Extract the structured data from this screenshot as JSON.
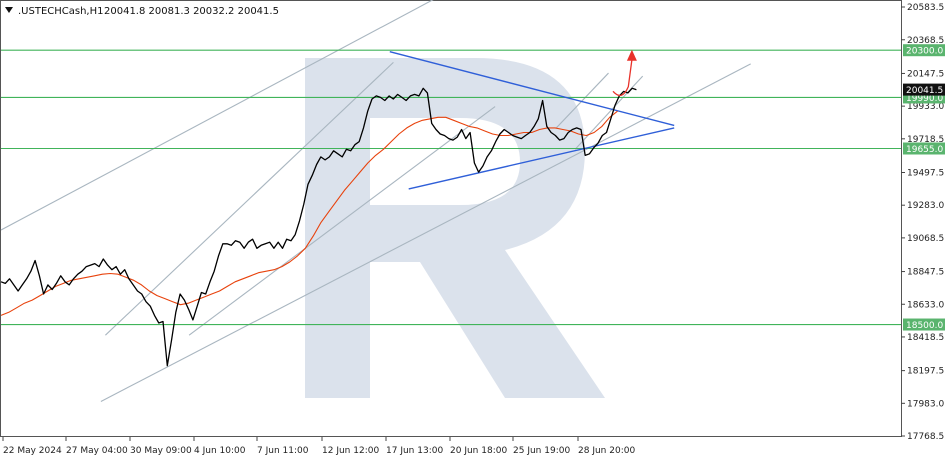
{
  "header": {
    "symbol": ".USTECHCash,H1",
    "ohlc": "20041.8 20081.3 20032.2 20041.5",
    "menu_icon": "triangle-down-icon"
  },
  "watermark_icon": "broker-logo-letter-r",
  "colors": {
    "price_line": "#000000",
    "moving_average": "#e8420c",
    "level_lines": "#41b45a",
    "level_label_bg": "#5ab46e",
    "triangle_lines": "#2f5fd8",
    "channel_lines": "#a9b6c0",
    "forecast_arrow": "#e8322a",
    "watermark": "#dbe2ec"
  },
  "chart_data": {
    "type": "line",
    "title": "",
    "xlabel": "",
    "ylabel": "",
    "ylim": [
      17768.5,
      20583.5
    ],
    "grid": false,
    "y_ticks": [
      "20583.5",
      "20368.5",
      "20147.5",
      "19933.0",
      "19718.5",
      "19497.5",
      "19283.0",
      "19068.5",
      "18847.5",
      "18633.0",
      "18418.5",
      "18197.5",
      "17983.0",
      "17768.5"
    ],
    "x_ticks": [
      "22 May 2024",
      "27 May 04:00",
      "30 May 09:00",
      "4 Jun 10:00",
      "7 Jun 11:00",
      "12 Jun 12:00",
      "17 Jun 13:00",
      "20 Jun 18:00",
      "25 Jun 19:00",
      "28 Jun 20:00"
    ],
    "current_price": {
      "label": "20041.5",
      "value": 20041.5
    },
    "levels": [
      {
        "label": "20300.0",
        "value": 20300.0
      },
      {
        "label": "19990.0",
        "value": 19990.0
      },
      {
        "label": "19655.0",
        "value": 19655.0
      },
      {
        "label": "18500.0",
        "value": 18500.0
      }
    ],
    "series": [
      {
        "type": "price",
        "values": [
          18780,
          18770,
          18800,
          18760,
          18720,
          18760,
          18800,
          18850,
          18920,
          18820,
          18700,
          18760,
          18730,
          18770,
          18820,
          18780,
          18760,
          18800,
          18830,
          18850,
          18880,
          18890,
          18900,
          18880,
          18930,
          18890,
          18860,
          18880,
          18830,
          18860,
          18800,
          18760,
          18720,
          18700,
          18650,
          18620,
          18560,
          18510,
          18520,
          18230,
          18400,
          18580,
          18700,
          18660,
          18600,
          18530,
          18620,
          18710,
          18700,
          18780,
          18850,
          18950,
          19030,
          19030,
          19020,
          19050,
          19040,
          19000,
          19040,
          19060,
          19000,
          19020,
          19030,
          19040,
          19000,
          19040,
          19000,
          19060,
          19050,
          19090,
          19180,
          19290,
          19420,
          19480,
          19550,
          19600,
          19580,
          19600,
          19640,
          19620,
          19600,
          19650,
          19640,
          19680,
          19700,
          19790,
          19900,
          19980,
          20000,
          19990,
          19970,
          20000,
          19980,
          20010,
          19990,
          19970,
          20000,
          20010,
          20000,
          20050,
          20020,
          19820,
          19780,
          19750,
          19740,
          19720,
          19710,
          19730,
          19780,
          19720,
          19760,
          19560,
          19500,
          19540,
          19600,
          19640,
          19700,
          19750,
          19780,
          19760,
          19740,
          19730,
          19720,
          19740,
          19760,
          19800,
          19850,
          19970,
          19800,
          19760,
          19740,
          19710,
          19720,
          19760,
          19780,
          19790,
          19780,
          19610,
          19620,
          19660,
          19690,
          19740,
          19760,
          19850,
          19940,
          20000,
          20030,
          20020,
          20050,
          20041
        ]
      },
      {
        "type": "moving-average",
        "values": [
          18560,
          18580,
          18610,
          18640,
          18660,
          18690,
          18720,
          18750,
          18770,
          18790,
          18800,
          18810,
          18820,
          18830,
          18835,
          18830,
          18810,
          18790,
          18760,
          18720,
          18690,
          18670,
          18650,
          18630,
          18640,
          18660,
          18680,
          18700,
          18720,
          18750,
          18780,
          18800,
          18820,
          18840,
          18850,
          18860,
          18880,
          18910,
          18950,
          19000,
          19080,
          19170,
          19240,
          19310,
          19380,
          19440,
          19500,
          19560,
          19610,
          19650,
          19700,
          19750,
          19790,
          19820,
          19840,
          19850,
          19860,
          19860,
          19840,
          19820,
          19800,
          19790,
          19770,
          19750,
          19740,
          19740,
          19750,
          19760,
          19760,
          19780,
          19790,
          19790,
          19780,
          19770,
          19750,
          19740,
          19760,
          19800,
          19860,
          19900
        ]
      }
    ],
    "trendlines": [
      {
        "name": "triangle-upper",
        "points": [
          [
            0.432,
            20290
          ],
          [
            0.748,
            19806
          ]
        ]
      },
      {
        "name": "triangle-lower",
        "points": [
          [
            0.453,
            19390
          ],
          [
            0.748,
            19790
          ]
        ]
      },
      {
        "name": "channel-upper-outer",
        "points": [
          [
            0.0,
            19120
          ],
          [
            0.613,
            21050
          ]
        ]
      },
      {
        "name": "channel-lower-outer",
        "points": [
          [
            0.111,
            17995
          ],
          [
            0.833,
            20210
          ]
        ]
      },
      {
        "name": "channel-upper-inner",
        "points": [
          [
            0.116,
            18430
          ],
          [
            0.436,
            20220
          ]
        ]
      },
      {
        "name": "channel-lower-inner",
        "points": [
          [
            0.209,
            18430
          ],
          [
            0.549,
            19930
          ]
        ]
      },
      {
        "name": "channel-upper-right",
        "points": [
          [
            0.617,
            19790
          ],
          [
            0.675,
            20150
          ]
        ]
      },
      {
        "name": "channel-lower-right",
        "points": [
          [
            0.638,
            19650
          ],
          [
            0.713,
            20130
          ]
        ]
      }
    ],
    "forecast": {
      "points": [
        [
          0.68,
          20030
        ],
        [
          0.69,
          19990
        ],
        [
          0.697,
          20060
        ],
        [
          0.701,
          20290
        ]
      ]
    }
  }
}
